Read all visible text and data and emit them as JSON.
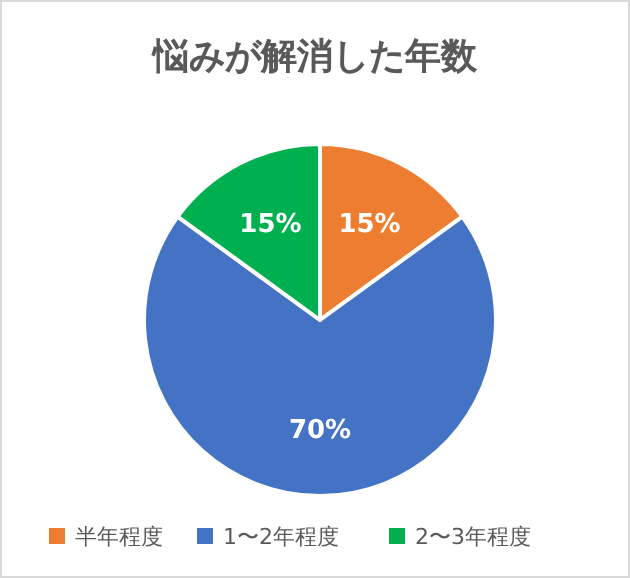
{
  "chart_data": {
    "type": "pie",
    "title": "悩みが解消した年数",
    "categories": [
      "半年程度",
      "1〜2年程度",
      "2〜3年程度"
    ],
    "values": [
      15,
      70,
      15
    ],
    "colors": [
      "#ed7d31",
      "#4472c4",
      "#00b050"
    ],
    "value_labels": [
      "15%",
      "70%",
      "15%"
    ],
    "legend": "bottom"
  }
}
